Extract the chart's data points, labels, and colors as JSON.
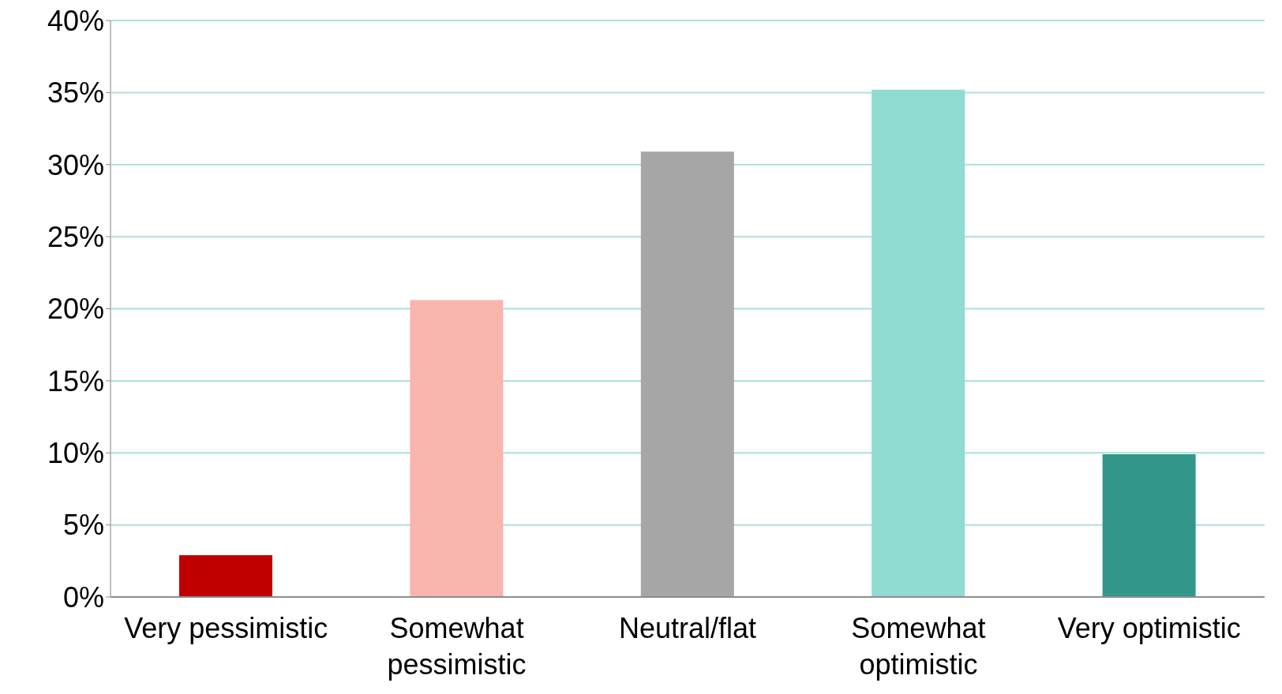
{
  "chart_data": {
    "type": "bar",
    "categories": [
      "Very pessimistic",
      "Somewhat pessimistic",
      "Neutral/flat",
      "Somewhat optimistic",
      "Very optimistic"
    ],
    "values": [
      2.9,
      20.6,
      30.9,
      35.2,
      9.9
    ],
    "colors": [
      "#c00000",
      "#f9b4ae",
      "#a6a6a6",
      "#8fdbd1",
      "#33968a"
    ],
    "ylim": [
      0,
      40
    ],
    "yticks": [
      {
        "value": 0,
        "label": "0%"
      },
      {
        "value": 5,
        "label": "5%"
      },
      {
        "value": 10,
        "label": "10%"
      },
      {
        "value": 15,
        "label": "15%"
      },
      {
        "value": 20,
        "label": "20%"
      },
      {
        "value": 25,
        "label": "25%"
      },
      {
        "value": 30,
        "label": "30%"
      },
      {
        "value": 35,
        "label": "35%"
      },
      {
        "value": 40,
        "label": "40%"
      }
    ],
    "grid": "y"
  }
}
